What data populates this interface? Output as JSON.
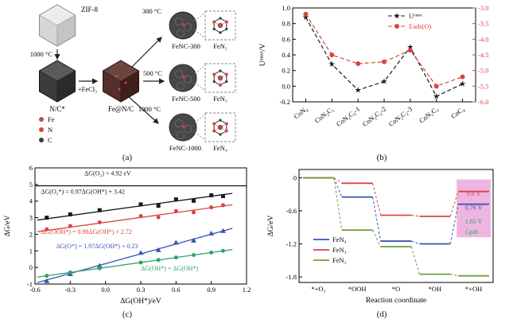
{
  "figure": {
    "panel_a": {
      "caption": "(a)",
      "labels": {
        "zif8": "ZIF-8",
        "t1000_first": "1000 °C",
        "nc": "N/C*",
        "fecl3": "+FeCl₃",
        "fenc": "Fe@N/C",
        "t300": "300 °C",
        "t500": "500 °C",
        "t1000": "1000 °C",
        "p300": "FeNC-300",
        "p500": "FeNC-500",
        "p1000": "FeNC-1000",
        "s300": "FeN₂",
        "s500": "FeN₃",
        "s1000": "FeN₄"
      },
      "legend": [
        {
          "label": "Fe",
          "color": "#b5524a"
        },
        {
          "label": "N",
          "color": "#d9453c"
        },
        {
          "label": "C",
          "color": "#3a3a3a"
        }
      ]
    }
  },
  "chart_data": [
    {
      "id": "panel-b",
      "type": "line",
      "caption": "(b)",
      "categories": [
        "CoN₄",
        "CoN₃C₁",
        "CoN₂C₂-1",
        "CoN₂C₂-2",
        "CoN₂C₂-3",
        "CoN₁C₃",
        "CoC₄"
      ],
      "left_axis": {
        "label": "Uᵒⁿˢᵉᵗ/V",
        "min": -0.2,
        "max": 1.0,
        "ticks": [
          1.0,
          0.8,
          0.6,
          0.4,
          0.2,
          0.0,
          -0.2
        ]
      },
      "right_axis": {
        "min": -6.0,
        "max": -3.0,
        "ticks": [
          -3.0,
          -3.5,
          -4.0,
          -4.5,
          -5.0,
          -5.5,
          -6.0
        ],
        "color": "#d9453c"
      },
      "series": [
        {
          "name": "Uᵒⁿˢᵉᵗ",
          "axis": "left",
          "color": "#1a1a1a",
          "marker": "star",
          "values": [
            0.88,
            0.28,
            -0.05,
            0.06,
            0.5,
            -0.13,
            0.03
          ]
        },
        {
          "name": "Eads(O)",
          "axis": "right",
          "color": "#d9453c",
          "marker": "circle",
          "values": [
            -3.2,
            -4.5,
            -4.78,
            -4.72,
            -4.35,
            -5.5,
            -5.2
          ]
        }
      ]
    },
    {
      "id": "panel-c",
      "type": "scatter",
      "caption": "(c)",
      "xlabel": "ΔG(OH*)/eV",
      "ylabel": "ΔG/eV",
      "xlim": [
        -0.6,
        1.2
      ],
      "ylim": [
        -1,
        6
      ],
      "xticks": [
        -0.6,
        -0.3,
        0.0,
        0.3,
        0.6,
        0.9,
        1.2
      ],
      "yticks": [
        -1,
        0,
        1,
        2,
        3,
        4,
        5,
        6
      ],
      "fit_range": [
        -0.58,
        1.08
      ],
      "hline": {
        "y": 4.92
      },
      "series": [
        {
          "name": "O2*",
          "color": "#1a1a1a",
          "marker": "square",
          "fit": {
            "slope": 0.97,
            "intercept": 3.42
          },
          "points": [
            [
              -0.5,
              3.0
            ],
            [
              -0.3,
              3.2
            ],
            [
              -0.05,
              3.45
            ],
            [
              0.3,
              3.8
            ],
            [
              0.45,
              3.72
            ],
            [
              0.6,
              4.1
            ],
            [
              0.75,
              4.02
            ],
            [
              0.9,
              4.35
            ],
            [
              1.0,
              4.3
            ]
          ]
        },
        {
          "name": "OOH*",
          "color": "#d9453c",
          "marker": "circle",
          "fit": {
            "slope": 0.98,
            "intercept": 2.72
          },
          "points": [
            [
              -0.5,
              2.3
            ],
            [
              -0.3,
              2.5
            ],
            [
              -0.05,
              2.72
            ],
            [
              0.3,
              3.1
            ],
            [
              0.45,
              3.02
            ],
            [
              0.6,
              3.4
            ],
            [
              0.75,
              3.32
            ],
            [
              0.9,
              3.62
            ],
            [
              1.0,
              3.75
            ]
          ]
        },
        {
          "name": "O*",
          "color": "#3557b2",
          "marker": "triangle",
          "fit": {
            "slope": 1.97,
            "intercept": 0.23
          },
          "points": [
            [
              -0.5,
              -0.82
            ],
            [
              -0.3,
              -0.4
            ],
            [
              -0.05,
              0.1
            ],
            [
              0.3,
              0.88
            ],
            [
              0.45,
              1.05
            ],
            [
              0.6,
              1.5
            ],
            [
              0.75,
              1.62
            ],
            [
              0.9,
              2.05
            ],
            [
              1.0,
              2.2
            ]
          ]
        },
        {
          "name": "OH*",
          "color": "#2fa36b",
          "marker": "circle",
          "fit": {
            "slope": 1.0,
            "intercept": 0.0
          },
          "points": [
            [
              -0.5,
              -0.5
            ],
            [
              -0.3,
              -0.3
            ],
            [
              -0.05,
              -0.05
            ],
            [
              0.3,
              0.3
            ],
            [
              0.45,
              0.45
            ],
            [
              0.6,
              0.6
            ],
            [
              0.75,
              0.75
            ],
            [
              0.9,
              0.9
            ],
            [
              1.0,
              1.0
            ]
          ]
        }
      ],
      "annotations": [
        {
          "text": "ΔG(O₂) = 4.92 eV",
          "color": "#1a1a1a",
          "x": -0.18,
          "y": 5.55
        },
        {
          "text": "ΔG(O₂*) = 0.97ΔG(OH*) + 3.42",
          "color": "#1a1a1a",
          "x": -0.55,
          "y": 4.45
        },
        {
          "text": "ΔG(OOH*) = 0.98ΔG(OH*) + 2.72",
          "color": "#d9453c",
          "x": -0.55,
          "y": 2.02
        },
        {
          "text": "ΔG(O*) = 1.97ΔG(OH*) + 0.23",
          "color": "#3557b2",
          "x": -0.42,
          "y": 1.15
        },
        {
          "text": "ΔG(OH*) = ΔG(OH*)",
          "color": "#2fa36b",
          "x": 0.3,
          "y": -0.18
        }
      ]
    },
    {
      "id": "panel-d",
      "type": "step",
      "caption": "(d)",
      "xlabel": "Reaction coordinate",
      "ylabel": "ΔG/eV",
      "categories": [
        "*+O₂",
        "*OOH",
        "*O",
        "*OH",
        "*+OH"
      ],
      "ylim": [
        -1.9,
        0.15
      ],
      "yticks": [
        {
          "v": 0,
          "label": "0"
        },
        {
          "v": -0.6,
          "label": "-0.6"
        },
        {
          "v": -1.2,
          "label": "-1.2"
        },
        {
          "v": -1.8,
          "label": "-1.8"
        }
      ],
      "series": [
        {
          "name": "FeN₄",
          "color": "#3557b2",
          "values": [
            0,
            -0.35,
            -1.15,
            -1.2,
            -0.48
          ]
        },
        {
          "name": "FeN₃",
          "color": "#d9453c",
          "values": [
            0,
            -0.1,
            -0.68,
            -0.7,
            -0.25
          ]
        },
        {
          "name": "FeN₂",
          "color": "#6f9e3f",
          "values": [
            0,
            -0.95,
            -1.25,
            -1.75,
            -1.78
          ]
        }
      ],
      "highlight": {
        "slot": 4,
        "y_top": -0.03,
        "y_bottom": -1.08,
        "color": "#e06cc3",
        "opacity": 0.5
      },
      "annotations": [
        {
          "text": "0.6 V",
          "color": "#d9453c",
          "slot": 4.5,
          "y": -0.33
        },
        {
          "text": "0.76 V",
          "color": "#3557b2",
          "slot": 4.5,
          "y": -0.58
        },
        {
          "text": "1.65 V",
          "color": "#2fa36b",
          "slot": 4.5,
          "y": -0.83
        },
        {
          "text": "Gpds",
          "color": "#2fa36b",
          "slot": 4.45,
          "y": -1.02,
          "italic": true
        }
      ]
    }
  ]
}
